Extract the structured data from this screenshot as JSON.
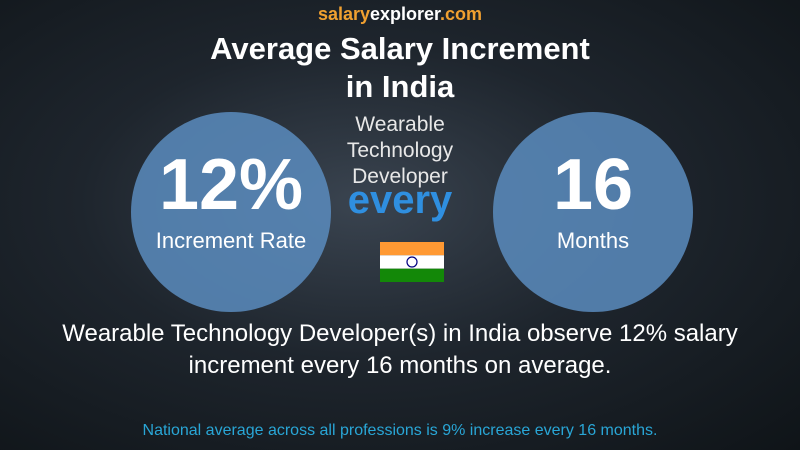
{
  "brand": {
    "parts": [
      "salary",
      "explorer",
      ".com"
    ]
  },
  "title": {
    "lines": [
      "Average Salary Increment",
      "in India"
    ]
  },
  "job": {
    "lines": [
      "Wearable",
      "Technology",
      "Developer"
    ]
  },
  "left_circle": {
    "value": "12%",
    "label": "Increment Rate"
  },
  "connector": "every",
  "right_circle": {
    "value": "16",
    "label": "Months"
  },
  "summary": {
    "lines": [
      "Wearable Technology Developer(s) in India observe 12% salary",
      "increment every 16 months on average."
    ]
  },
  "footer": "National average across all professions is 9% increase every 16 months."
}
